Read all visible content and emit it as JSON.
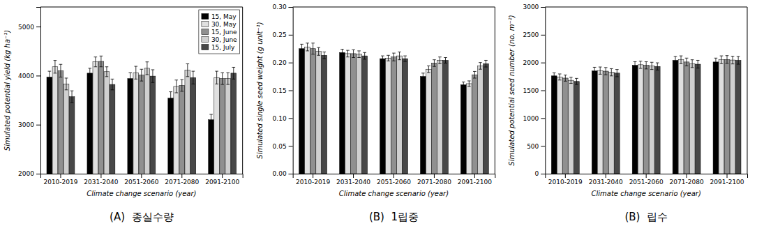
{
  "chart_data": [
    {
      "type": "bar",
      "title": "(A)  종실수량",
      "xlabel": "Climate change scenario (year)",
      "ylabel": "Simulated potential yield (kg ha⁻¹)",
      "categories": [
        "2010-2019",
        "2031-2040",
        "2051-2060",
        "2071-2080",
        "2091-2100"
      ],
      "series": [
        {
          "name": "15, May",
          "color": "#000000",
          "values": [
            3970,
            4050,
            3940,
            3540,
            3100
          ],
          "errors": [
            120,
            100,
            120,
            130,
            110
          ]
        },
        {
          "name": "30, May",
          "color": "#e0e0e0",
          "values": [
            4180,
            4280,
            4060,
            3780,
            3960
          ],
          "errors": [
            130,
            100,
            130,
            130,
            130
          ]
        },
        {
          "name": "15, June",
          "color": "#909090",
          "values": [
            4100,
            4290,
            4010,
            3800,
            3940
          ],
          "errors": [
            130,
            110,
            120,
            120,
            120
          ]
        },
        {
          "name": "30, June",
          "color": "#d0d0d0",
          "values": [
            3830,
            4080,
            4150,
            4110,
            3940
          ],
          "errors": [
            120,
            100,
            130,
            130,
            120
          ]
        },
        {
          "name": "15, July",
          "color": "#484848",
          "values": [
            3570,
            3820,
            3990,
            3960,
            4050
          ],
          "errors": [
            120,
            110,
            130,
            130,
            120
          ]
        }
      ],
      "ylim": [
        2000,
        5400
      ],
      "yticks": [
        2000,
        3000,
        4000,
        5000
      ],
      "grid": false,
      "legend": "upper right"
    },
    {
      "type": "bar",
      "title": "(B)  1립중",
      "xlabel": "Climate change scenario (year)",
      "ylabel": "Simulated single seed weight (g unit⁻¹)",
      "categories": [
        "2010-2019",
        "2031-2040",
        "2051-2060",
        "2071-2080",
        "2091-2100"
      ],
      "series": [
        {
          "color": "#000000",
          "values": [
            0.225,
            0.218,
            0.207,
            0.175,
            0.16
          ],
          "errors": [
            0.008,
            0.006,
            0.005,
            0.006,
            0.005
          ]
        },
        {
          "color": "#e0e0e0",
          "values": [
            0.228,
            0.216,
            0.208,
            0.188,
            0.162
          ],
          "errors": [
            0.007,
            0.006,
            0.005,
            0.006,
            0.005
          ]
        },
        {
          "color": "#909090",
          "values": [
            0.225,
            0.216,
            0.21,
            0.199,
            0.178
          ],
          "errors": [
            0.01,
            0.007,
            0.007,
            0.006,
            0.006
          ]
        },
        {
          "color": "#d0d0d0",
          "values": [
            0.22,
            0.215,
            0.212,
            0.204,
            0.194
          ],
          "errors": [
            0.007,
            0.006,
            0.007,
            0.006,
            0.006
          ]
        },
        {
          "color": "#484848",
          "values": [
            0.213,
            0.212,
            0.207,
            0.204,
            0.198
          ],
          "errors": [
            0.006,
            0.006,
            0.005,
            0.005,
            0.006
          ]
        }
      ],
      "ylim": [
        0,
        0.3
      ],
      "yticks": [
        {
          "value": 0,
          "label": "0.00"
        },
        {
          "value": 0.05,
          "label": "0.05"
        },
        {
          "value": 0.1,
          "label": "0.10"
        },
        {
          "value": 0.15,
          "label": "0.15"
        },
        {
          "value": 0.2,
          "label": "0.20"
        },
        {
          "value": 0.25,
          "label": "0.25"
        },
        {
          "value": 0.3,
          "label": "0.30"
        }
      ],
      "grid": false
    },
    {
      "type": "bar",
      "title": "(B)  립수",
      "xlabel": "Climate change scenario (year)",
      "ylabel": "Simulated potential seed number (no. m⁻²)",
      "categories": [
        "2010-2019",
        "2031-2040",
        "2051-2060",
        "2071-2080",
        "2091-2100"
      ],
      "series": [
        {
          "color": "#000000",
          "values": [
            1760,
            1850,
            1950,
            2040,
            2010
          ],
          "errors": [
            55,
            65,
            65,
            70,
            70
          ]
        },
        {
          "color": "#e0e0e0",
          "values": [
            1740,
            1855,
            1960,
            2050,
            2050
          ],
          "errors": [
            55,
            65,
            65,
            70,
            70
          ]
        },
        {
          "color": "#909090",
          "values": [
            1720,
            1845,
            1950,
            2010,
            2055
          ],
          "errors": [
            55,
            65,
            65,
            70,
            70
          ]
        },
        {
          "color": "#d0d0d0",
          "values": [
            1680,
            1825,
            1940,
            1980,
            2045
          ],
          "errors": [
            55,
            65,
            65,
            70,
            70
          ]
        },
        {
          "color": "#484848",
          "values": [
            1660,
            1810,
            1930,
            1970,
            2040
          ],
          "errors": [
            55,
            65,
            65,
            70,
            70
          ]
        }
      ],
      "ylim": [
        0,
        3000
      ],
      "yticks": [
        0,
        500,
        1000,
        1500,
        2000,
        2500,
        3000
      ],
      "grid": false
    }
  ]
}
